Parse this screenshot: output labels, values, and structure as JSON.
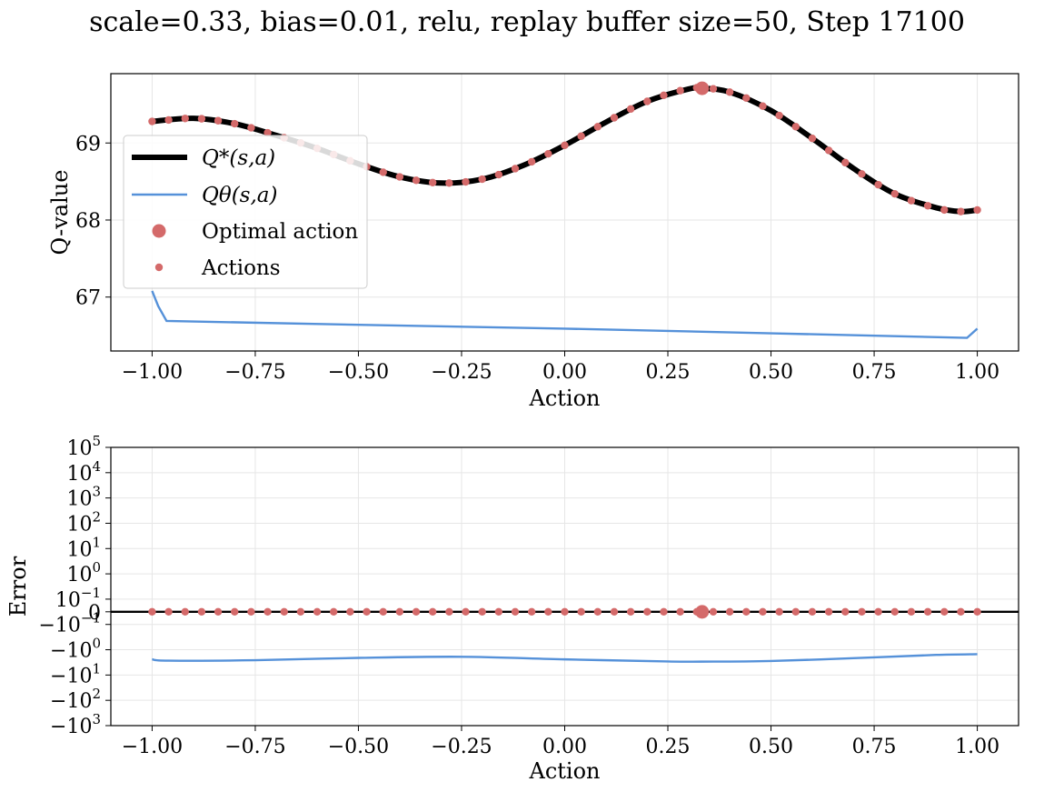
{
  "figure": {
    "title": "scale=0.33, bias=0.01, relu, replay buffer size=50, Step 17100"
  },
  "colors": {
    "q_star": "#000000",
    "q_theta": "#5591d9",
    "actions": "#d46a6a",
    "grid": "#e6e6e6"
  },
  "chart_data": [
    {
      "type": "line",
      "name": "q-value-panel",
      "xlabel": "Action",
      "ylabel": "Q-value",
      "xlim": [
        -1.1,
        1.1
      ],
      "ylim": [
        66.3,
        69.9
      ],
      "xticks": [
        -1.0,
        -0.75,
        -0.5,
        -0.25,
        0.0,
        0.25,
        0.5,
        0.75,
        1.0
      ],
      "xtick_labels": [
        "−1.00",
        "−0.75",
        "−0.50",
        "−0.25",
        "0.00",
        "0.25",
        "0.50",
        "0.75",
        "1.00"
      ],
      "yticks": [
        67,
        68,
        69
      ],
      "ytick_labels": [
        "67",
        "68",
        "69"
      ],
      "grid": true,
      "legend": {
        "placement": "upper-left",
        "entries": [
          {
            "label": "Q*(s,a)",
            "marker": "thick-line"
          },
          {
            "label": "Qθ(s,a)",
            "marker": "line"
          },
          {
            "label": "Optimal action",
            "marker": "big-dot"
          },
          {
            "label": "Actions",
            "marker": "small-dot"
          }
        ]
      },
      "series": [
        {
          "name": "Q*(s,a)",
          "x": [
            -1.0,
            -0.9,
            -0.8,
            -0.7,
            -0.6,
            -0.5,
            -0.4,
            -0.3,
            -0.2,
            -0.1,
            0.0,
            0.1,
            0.2,
            0.3,
            0.333,
            0.4,
            0.5,
            0.6,
            0.7,
            0.8,
            0.9,
            0.96,
            1.0
          ],
          "y": [
            69.28,
            69.32,
            69.25,
            69.1,
            68.93,
            68.73,
            68.56,
            68.48,
            68.53,
            68.71,
            68.97,
            69.27,
            69.54,
            69.7,
            69.71,
            69.66,
            69.42,
            69.06,
            68.67,
            68.34,
            68.16,
            68.11,
            68.13
          ]
        },
        {
          "name": "Qθ(s,a)",
          "x": [
            -1.0,
            -0.985,
            -0.965,
            -0.5,
            0.0,
            0.5,
            0.975,
            1.0
          ],
          "y": [
            67.08,
            66.88,
            66.69,
            66.64,
            66.59,
            66.53,
            66.47,
            66.59
          ]
        },
        {
          "name": "Optimal action",
          "x": [
            0.333
          ],
          "y": [
            69.71
          ]
        }
      ],
      "actions_x": [
        -1.0,
        -0.96,
        -0.92,
        -0.88,
        -0.84,
        -0.8,
        -0.76,
        -0.72,
        -0.68,
        -0.64,
        -0.6,
        -0.56,
        -0.52,
        -0.48,
        -0.44,
        -0.4,
        -0.36,
        -0.32,
        -0.28,
        -0.24,
        -0.2,
        -0.16,
        -0.12,
        -0.08,
        -0.04,
        0.0,
        0.04,
        0.08,
        0.12,
        0.16,
        0.2,
        0.24,
        0.28,
        0.32,
        0.36,
        0.4,
        0.44,
        0.48,
        0.52,
        0.56,
        0.6,
        0.64,
        0.68,
        0.72,
        0.76,
        0.8,
        0.84,
        0.88,
        0.92,
        0.96,
        1.0
      ]
    },
    {
      "type": "line",
      "name": "error-panel",
      "xlabel": "Action",
      "ylabel": "Error",
      "xlim": [
        -1.1,
        1.1
      ],
      "yscale": "symlog",
      "ylim": [
        -1000,
        100000
      ],
      "xticks": [
        -1.0,
        -0.75,
        -0.5,
        -0.25,
        0.0,
        0.25,
        0.5,
        0.75,
        1.0
      ],
      "xtick_labels": [
        "−1.00",
        "−0.75",
        "−0.50",
        "−0.25",
        "0.00",
        "0.25",
        "0.50",
        "0.75",
        "1.00"
      ],
      "yticks": [
        100000,
        10000,
        1000,
        100,
        10,
        1,
        0.1,
        0,
        -0.1,
        -1,
        -10,
        -100,
        -1000
      ],
      "ytick_labels": [
        {
          "base": "10",
          "exp": "5"
        },
        {
          "base": "10",
          "exp": "4"
        },
        {
          "base": "10",
          "exp": "3"
        },
        {
          "base": "10",
          "exp": "2"
        },
        {
          "base": "10",
          "exp": "1"
        },
        {
          "base": "10",
          "exp": "0"
        },
        {
          "base": "10",
          "exp": "−1"
        },
        {
          "base": "0",
          "exp": ""
        },
        {
          "base": "−10",
          "exp": "−1"
        },
        {
          "base": "−10",
          "exp": "0"
        },
        {
          "base": "−10",
          "exp": "1"
        },
        {
          "base": "−10",
          "exp": "2"
        },
        {
          "base": "−10",
          "exp": "3"
        }
      ],
      "grid": true,
      "zero_line": true,
      "series": [
        {
          "name": "Qθ error",
          "x": [
            -1.0,
            -0.96,
            -0.75,
            -0.5,
            -0.25,
            0.0,
            0.25,
            0.33,
            0.5,
            0.75,
            0.9,
            1.0
          ],
          "y": [
            -2.4,
            -2.7,
            -2.6,
            -2.1,
            -1.9,
            -2.4,
            -2.9,
            -2.95,
            -2.8,
            -2.0,
            -1.6,
            -1.5
          ]
        },
        {
          "name": "Optimal action",
          "x": [
            0.333
          ],
          "y": [
            0
          ]
        }
      ],
      "actions_x": [
        -1.0,
        -0.96,
        -0.92,
        -0.88,
        -0.84,
        -0.8,
        -0.76,
        -0.72,
        -0.68,
        -0.64,
        -0.6,
        -0.56,
        -0.52,
        -0.48,
        -0.44,
        -0.4,
        -0.36,
        -0.32,
        -0.28,
        -0.24,
        -0.2,
        -0.16,
        -0.12,
        -0.08,
        -0.04,
        0.0,
        0.04,
        0.08,
        0.12,
        0.16,
        0.2,
        0.24,
        0.28,
        0.32,
        0.36,
        0.4,
        0.44,
        0.48,
        0.52,
        0.56,
        0.6,
        0.64,
        0.68,
        0.72,
        0.76,
        0.8,
        0.84,
        0.88,
        0.92,
        0.96,
        1.0
      ],
      "actions_y": 0
    }
  ]
}
